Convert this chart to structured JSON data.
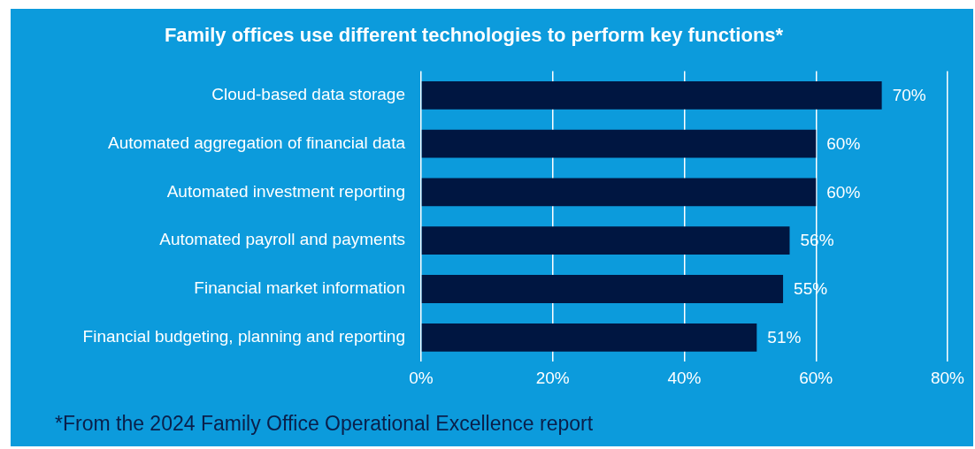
{
  "chart_data": {
    "type": "bar",
    "orientation": "horizontal",
    "title": "Family offices use different technologies to perform key functions*",
    "categories": [
      "Cloud-based data storage",
      "Automated aggregation of financial data",
      "Automated investment reporting",
      "Automated payroll and payments",
      "Financial market information",
      "Financial budgeting, planning and reporting"
    ],
    "values": [
      70,
      60,
      60,
      56,
      55,
      51
    ],
    "value_labels": [
      "70%",
      "60%",
      "60%",
      "56%",
      "55%",
      "51%"
    ],
    "color": "#001641",
    "xlim": [
      0,
      80
    ],
    "xticks": [
      {
        "value": 0,
        "label": "0%"
      },
      {
        "value": 20,
        "label": "20%"
      },
      {
        "value": 40,
        "label": "40%"
      },
      {
        "value": 60,
        "label": "60%"
      },
      {
        "value": 80,
        "label": "80%"
      }
    ],
    "grid": "x",
    "annotations": [
      "*From the 2024 Family Office Operational Excellence report"
    ]
  }
}
